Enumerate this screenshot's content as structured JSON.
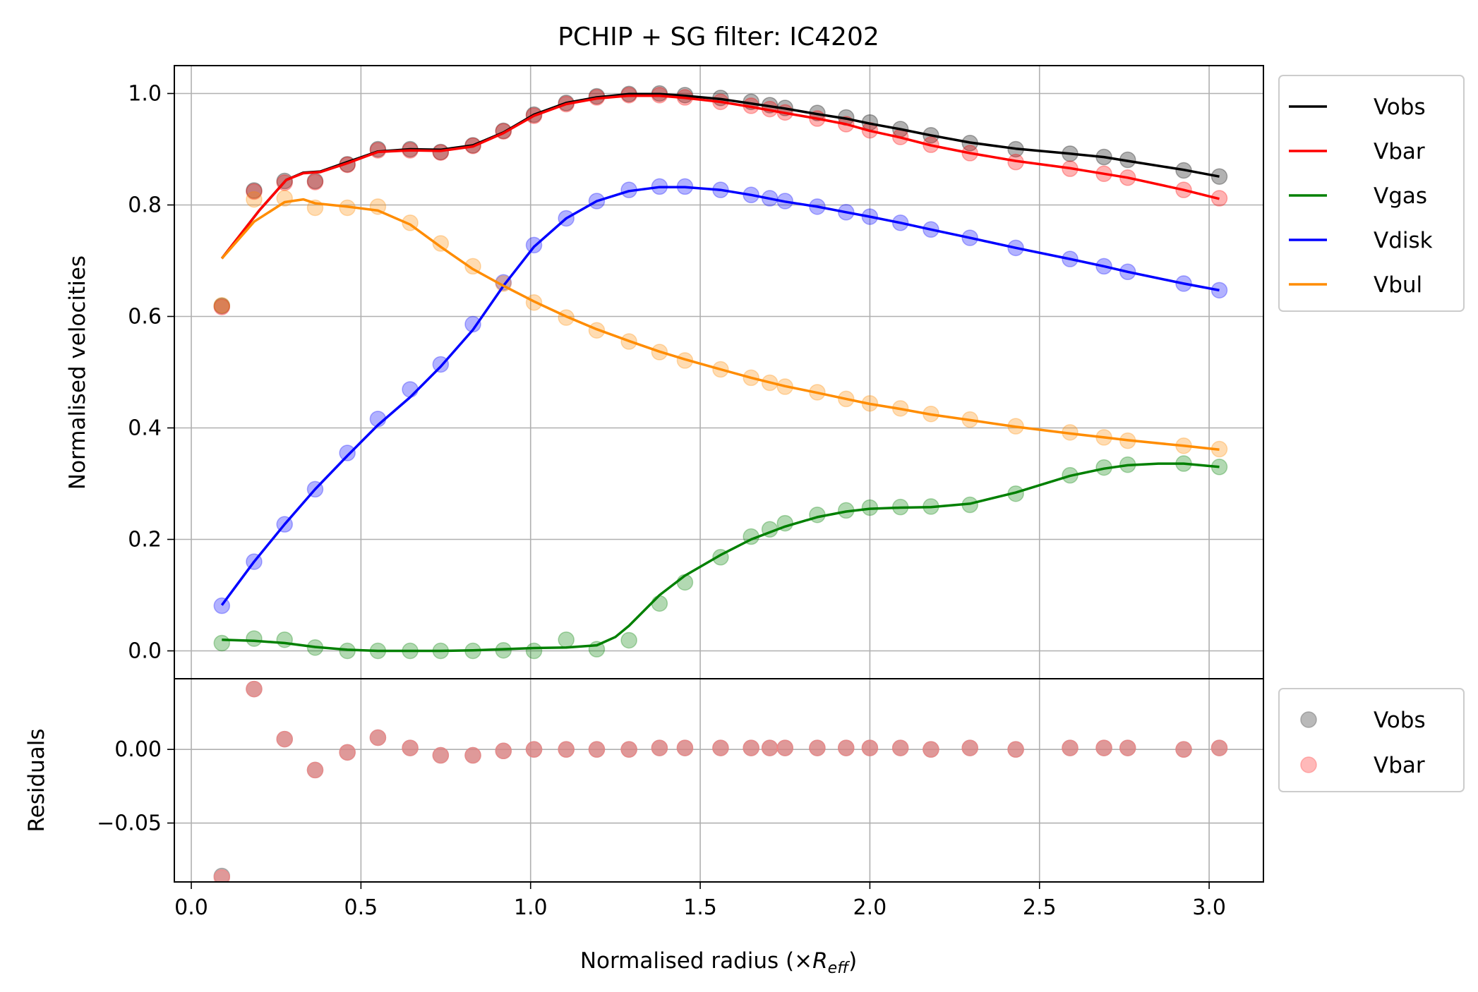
{
  "chart_data": {
    "type": "line",
    "title": "PCHIP + SG filter: IC4202",
    "xlabel_main": "Normalised radius (×",
    "xlabel_sub": "R",
    "xlabel_subscript": "eff",
    "xlabel_close": ")",
    "ylabel_top": "Normalised velocities",
    "ylabel_bottom": "Residuals",
    "xlim": [
      -0.05,
      3.16
    ],
    "ylim_top": [
      -0.05,
      1.05
    ],
    "ylim_bottom": [
      -0.09,
      0.048
    ],
    "xticks": [
      "0.0",
      "0.5",
      "1.0",
      "1.5",
      "2.0",
      "2.5",
      "3.0"
    ],
    "xtick_values": [
      0.0,
      0.5,
      1.0,
      1.5,
      2.0,
      2.5,
      3.0
    ],
    "yticks_top": [
      "0.0",
      "0.2",
      "0.4",
      "0.6",
      "0.8",
      "1.0"
    ],
    "ytick_values_top": [
      0.0,
      0.2,
      0.4,
      0.6,
      0.8,
      1.0
    ],
    "yticks_bottom": [
      "0.00",
      "−0.05"
    ],
    "ytick_values_bottom": [
      0.0,
      -0.05
    ],
    "grid": true,
    "legend_top_placement": "outside upper right",
    "legend_bottom_placement": "outside lower right",
    "x": [
      0.09,
      0.185,
      0.275,
      0.365,
      0.46,
      0.55,
      0.645,
      0.735,
      0.83,
      0.92,
      1.01,
      1.105,
      1.195,
      1.29,
      1.38,
      1.455,
      1.56,
      1.65,
      1.705,
      1.75,
      1.845,
      1.93,
      2.0,
      2.09,
      2.18,
      2.295,
      2.43,
      2.59,
      2.69,
      2.76,
      2.925,
      3.03
    ],
    "series": [
      {
        "name": "Vobs",
        "color": "#000000",
        "points": [
          0.619,
          0.826,
          0.843,
          0.843,
          0.873,
          0.9,
          0.9,
          0.895,
          0.907,
          0.933,
          0.962,
          0.983,
          0.995,
          0.999,
          1.0,
          0.997,
          0.992,
          0.985,
          0.979,
          0.974,
          0.965,
          0.957,
          0.948,
          0.936,
          0.925,
          0.911,
          0.9,
          0.892,
          0.886,
          0.881,
          0.862,
          0.851
        ],
        "curve": [
          [
            0.09,
            0.704
          ],
          [
            0.2,
            0.79
          ],
          [
            0.28,
            0.845
          ],
          [
            0.33,
            0.858
          ],
          [
            0.38,
            0.86
          ],
          [
            0.46,
            0.877
          ],
          [
            0.55,
            0.896
          ],
          [
            0.645,
            0.9
          ],
          [
            0.735,
            0.899
          ],
          [
            0.83,
            0.907
          ],
          [
            0.92,
            0.93
          ],
          [
            1.01,
            0.962
          ],
          [
            1.105,
            0.983
          ],
          [
            1.195,
            0.993
          ],
          [
            1.29,
            0.999
          ],
          [
            1.38,
            0.999
          ],
          [
            1.455,
            0.996
          ],
          [
            1.56,
            0.99
          ],
          [
            1.65,
            0.982
          ],
          [
            1.75,
            0.973
          ],
          [
            1.845,
            0.963
          ],
          [
            1.93,
            0.955
          ],
          [
            2.0,
            0.946
          ],
          [
            2.09,
            0.936
          ],
          [
            2.18,
            0.925
          ],
          [
            2.295,
            0.912
          ],
          [
            2.43,
            0.901
          ],
          [
            2.59,
            0.892
          ],
          [
            2.69,
            0.886
          ],
          [
            2.76,
            0.879
          ],
          [
            2.925,
            0.863
          ],
          [
            3.03,
            0.851
          ]
        ]
      },
      {
        "name": "Vbar",
        "color": "#ff0000",
        "points": [
          0.617,
          0.824,
          0.84,
          0.841,
          0.872,
          0.898,
          0.898,
          0.894,
          0.906,
          0.932,
          0.96,
          0.981,
          0.993,
          0.997,
          0.997,
          0.993,
          0.985,
          0.978,
          0.972,
          0.966,
          0.955,
          0.945,
          0.934,
          0.922,
          0.908,
          0.893,
          0.877,
          0.865,
          0.856,
          0.849,
          0.827,
          0.812
        ],
        "curve": [
          [
            0.09,
            0.704
          ],
          [
            0.2,
            0.79
          ],
          [
            0.28,
            0.845
          ],
          [
            0.33,
            0.857
          ],
          [
            0.38,
            0.859
          ],
          [
            0.46,
            0.875
          ],
          [
            0.55,
            0.895
          ],
          [
            0.645,
            0.898
          ],
          [
            0.735,
            0.897
          ],
          [
            0.83,
            0.905
          ],
          [
            0.92,
            0.929
          ],
          [
            1.01,
            0.96
          ],
          [
            1.105,
            0.981
          ],
          [
            1.195,
            0.991
          ],
          [
            1.29,
            0.996
          ],
          [
            1.38,
            0.996
          ],
          [
            1.455,
            0.992
          ],
          [
            1.56,
            0.985
          ],
          [
            1.65,
            0.976
          ],
          [
            1.75,
            0.965
          ],
          [
            1.845,
            0.955
          ],
          [
            1.93,
            0.945
          ],
          [
            2.0,
            0.933
          ],
          [
            2.09,
            0.921
          ],
          [
            2.18,
            0.907
          ],
          [
            2.295,
            0.893
          ],
          [
            2.43,
            0.879
          ],
          [
            2.59,
            0.866
          ],
          [
            2.69,
            0.856
          ],
          [
            2.76,
            0.849
          ],
          [
            2.925,
            0.827
          ],
          [
            3.03,
            0.811
          ]
        ]
      },
      {
        "name": "Vgas",
        "color": "#008000",
        "points": [
          0.014,
          0.022,
          0.02,
          0.006,
          0.0,
          0.0,
          0.0,
          0.0,
          0.0,
          0.001,
          0.0,
          0.02,
          0.003,
          0.019,
          0.085,
          0.123,
          0.168,
          0.205,
          0.218,
          0.229,
          0.244,
          0.252,
          0.257,
          0.258,
          0.259,
          0.262,
          0.282,
          0.315,
          0.329,
          0.334,
          0.336,
          0.33
        ],
        "curve": [
          [
            0.09,
            0.02
          ],
          [
            0.185,
            0.018
          ],
          [
            0.275,
            0.014
          ],
          [
            0.365,
            0.007
          ],
          [
            0.46,
            0.002
          ],
          [
            0.55,
            0.0
          ],
          [
            0.645,
            0.0
          ],
          [
            0.735,
            0.0
          ],
          [
            0.83,
            0.001
          ],
          [
            0.92,
            0.003
          ],
          [
            1.01,
            0.005
          ],
          [
            1.105,
            0.006
          ],
          [
            1.195,
            0.01
          ],
          [
            1.25,
            0.025
          ],
          [
            1.29,
            0.045
          ],
          [
            1.38,
            0.1
          ],
          [
            1.455,
            0.135
          ],
          [
            1.56,
            0.172
          ],
          [
            1.65,
            0.2
          ],
          [
            1.75,
            0.223
          ],
          [
            1.845,
            0.24
          ],
          [
            1.93,
            0.25
          ],
          [
            2.0,
            0.255
          ],
          [
            2.09,
            0.257
          ],
          [
            2.18,
            0.258
          ],
          [
            2.295,
            0.264
          ],
          [
            2.43,
            0.284
          ],
          [
            2.59,
            0.314
          ],
          [
            2.69,
            0.327
          ],
          [
            2.76,
            0.333
          ],
          [
            2.85,
            0.336
          ],
          [
            2.925,
            0.336
          ],
          [
            3.03,
            0.33
          ]
        ]
      },
      {
        "name": "Vdisk",
        "color": "#0000ff",
        "points": [
          0.081,
          0.16,
          0.227,
          0.29,
          0.355,
          0.416,
          0.469,
          0.514,
          0.586,
          0.661,
          0.728,
          0.776,
          0.807,
          0.827,
          0.833,
          0.833,
          0.827,
          0.818,
          0.812,
          0.807,
          0.797,
          0.787,
          0.779,
          0.768,
          0.756,
          0.741,
          0.723,
          0.703,
          0.69,
          0.68,
          0.659,
          0.647
        ],
        "curve": [
          [
            0.09,
            0.082
          ],
          [
            0.185,
            0.16
          ],
          [
            0.275,
            0.227
          ],
          [
            0.365,
            0.29
          ],
          [
            0.46,
            0.35
          ],
          [
            0.55,
            0.405
          ],
          [
            0.645,
            0.455
          ],
          [
            0.735,
            0.51
          ],
          [
            0.83,
            0.576
          ],
          [
            0.92,
            0.655
          ],
          [
            1.01,
            0.725
          ],
          [
            1.105,
            0.776
          ],
          [
            1.195,
            0.807
          ],
          [
            1.29,
            0.825
          ],
          [
            1.38,
            0.832
          ],
          [
            1.455,
            0.832
          ],
          [
            1.56,
            0.827
          ],
          [
            1.65,
            0.818
          ],
          [
            1.75,
            0.806
          ],
          [
            1.845,
            0.797
          ],
          [
            1.93,
            0.787
          ],
          [
            2.0,
            0.779
          ],
          [
            2.09,
            0.768
          ],
          [
            2.18,
            0.756
          ],
          [
            2.295,
            0.741
          ],
          [
            2.43,
            0.723
          ],
          [
            2.59,
            0.703
          ],
          [
            2.69,
            0.69
          ],
          [
            2.76,
            0.68
          ],
          [
            2.925,
            0.659
          ],
          [
            3.03,
            0.647
          ]
        ]
      },
      {
        "name": "Vbul",
        "color": "#ff8c00",
        "points": [
          0.62,
          0.81,
          0.812,
          0.795,
          0.795,
          0.797,
          0.768,
          0.731,
          0.69,
          0.659,
          0.625,
          0.598,
          0.575,
          0.555,
          0.536,
          0.521,
          0.505,
          0.49,
          0.481,
          0.474,
          0.464,
          0.452,
          0.444,
          0.435,
          0.425,
          0.415,
          0.403,
          0.392,
          0.383,
          0.377,
          0.368,
          0.362
        ],
        "curve": [
          [
            0.09,
            0.704
          ],
          [
            0.185,
            0.77
          ],
          [
            0.275,
            0.805
          ],
          [
            0.33,
            0.81
          ],
          [
            0.365,
            0.803
          ],
          [
            0.46,
            0.797
          ],
          [
            0.55,
            0.79
          ],
          [
            0.645,
            0.765
          ],
          [
            0.735,
            0.725
          ],
          [
            0.83,
            0.685
          ],
          [
            0.92,
            0.655
          ],
          [
            1.01,
            0.627
          ],
          [
            1.105,
            0.6
          ],
          [
            1.195,
            0.577
          ],
          [
            1.29,
            0.556
          ],
          [
            1.38,
            0.537
          ],
          [
            1.455,
            0.523
          ],
          [
            1.56,
            0.505
          ],
          [
            1.65,
            0.49
          ],
          [
            1.75,
            0.475
          ],
          [
            1.845,
            0.463
          ],
          [
            1.93,
            0.452
          ],
          [
            2.0,
            0.443
          ],
          [
            2.09,
            0.434
          ],
          [
            2.18,
            0.424
          ],
          [
            2.295,
            0.414
          ],
          [
            2.43,
            0.402
          ],
          [
            2.59,
            0.39
          ],
          [
            2.69,
            0.383
          ],
          [
            2.76,
            0.378
          ],
          [
            2.925,
            0.368
          ],
          [
            3.03,
            0.361
          ]
        ]
      }
    ],
    "residuals": [
      {
        "name": "Vobs",
        "color": "#808080",
        "points": [
          [
            0.09,
            -0.086
          ],
          [
            0.185,
            0.041
          ],
          [
            0.275,
            0.007
          ],
          [
            0.365,
            -0.014
          ],
          [
            0.46,
            -0.002
          ],
          [
            0.55,
            0.008
          ],
          [
            0.645,
            0.001
          ],
          [
            0.735,
            -0.004
          ],
          [
            0.83,
            -0.004
          ],
          [
            0.92,
            -0.001
          ],
          [
            1.01,
            0.0
          ],
          [
            1.105,
            0.0
          ],
          [
            1.195,
            0.0
          ],
          [
            1.29,
            0.0
          ],
          [
            1.38,
            0.001
          ],
          [
            1.455,
            0.001
          ],
          [
            1.56,
            0.001
          ],
          [
            1.65,
            0.001
          ],
          [
            1.705,
            0.001
          ],
          [
            1.75,
            0.001
          ],
          [
            1.845,
            0.001
          ],
          [
            1.93,
            0.001
          ],
          [
            2.0,
            0.001
          ],
          [
            2.09,
            0.001
          ],
          [
            2.18,
            0.0
          ],
          [
            2.295,
            0.001
          ],
          [
            2.43,
            0.0
          ],
          [
            2.59,
            0.001
          ],
          [
            2.69,
            0.001
          ],
          [
            2.76,
            0.001
          ],
          [
            2.925,
            0.0
          ],
          [
            3.03,
            0.001
          ]
        ]
      },
      {
        "name": "Vbar",
        "color": "#ff8080",
        "points": [
          [
            0.09,
            -0.087
          ],
          [
            0.185,
            0.041
          ],
          [
            0.275,
            0.007
          ],
          [
            0.365,
            -0.014
          ],
          [
            0.46,
            -0.002
          ],
          [
            0.55,
            0.008
          ],
          [
            0.645,
            0.001
          ],
          [
            0.735,
            -0.004
          ],
          [
            0.83,
            -0.004
          ],
          [
            0.92,
            -0.001
          ],
          [
            1.01,
            0.0
          ],
          [
            1.105,
            0.0
          ],
          [
            1.195,
            0.0
          ],
          [
            1.29,
            0.0
          ],
          [
            1.38,
            0.001
          ],
          [
            1.455,
            0.001
          ],
          [
            1.56,
            0.001
          ],
          [
            1.65,
            0.001
          ],
          [
            1.705,
            0.001
          ],
          [
            1.75,
            0.001
          ],
          [
            1.845,
            0.001
          ],
          [
            1.93,
            0.001
          ],
          [
            2.0,
            0.001
          ],
          [
            2.09,
            0.001
          ],
          [
            2.18,
            0.0
          ],
          [
            2.295,
            0.001
          ],
          [
            2.43,
            0.0
          ],
          [
            2.59,
            0.001
          ],
          [
            2.69,
            0.001
          ],
          [
            2.76,
            0.001
          ],
          [
            2.925,
            0.0
          ],
          [
            3.03,
            0.001
          ]
        ]
      }
    ],
    "legend_top": [
      "Vobs",
      "Vbar",
      "Vgas",
      "Vdisk",
      "Vbul"
    ],
    "legend_bottom": [
      "Vobs",
      "Vbar"
    ]
  }
}
